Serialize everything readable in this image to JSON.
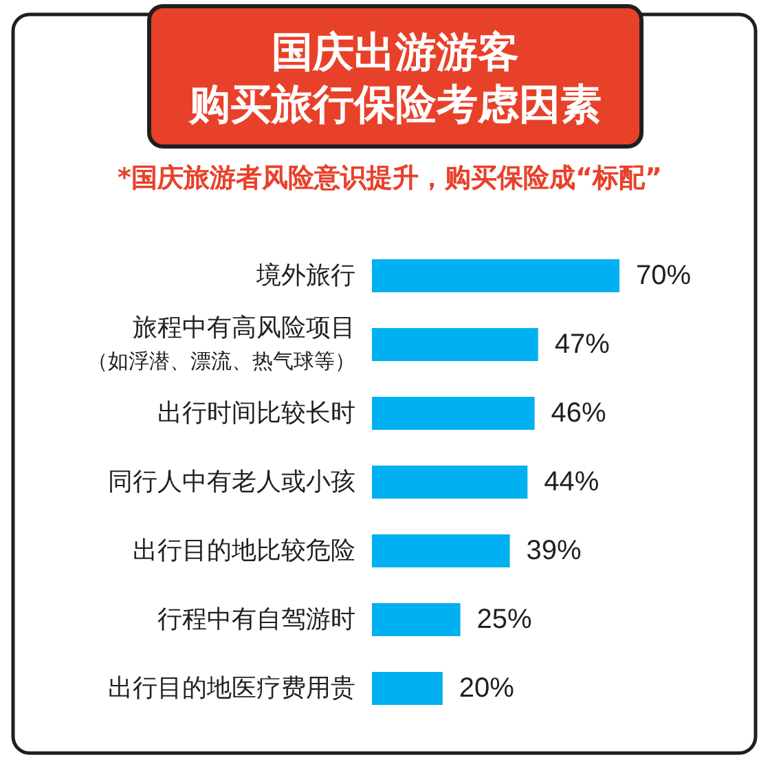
{
  "chart_data": {
    "type": "bar",
    "orientation": "horizontal",
    "title": "国庆出游游客购买旅行保险考虑因素",
    "subtitle": "*国庆旅游者风险意识提升，购买保险成“标配”",
    "categories": [
      "境外旅行",
      "旅程中有高风险项目（如浮潜、漂流、热气球等）",
      "出行时间比较长时",
      "同行人中有老人或小孩",
      "出行目的地比较危险",
      "行程中有自驾游时",
      "出行目的地医疗费用贵"
    ],
    "values": [
      70,
      47,
      46,
      44,
      39,
      25,
      20
    ],
    "value_labels": [
      "70%",
      "47%",
      "46%",
      "44%",
      "39%",
      "25%",
      "20%"
    ],
    "color": "#00b0f0"
  }
}
